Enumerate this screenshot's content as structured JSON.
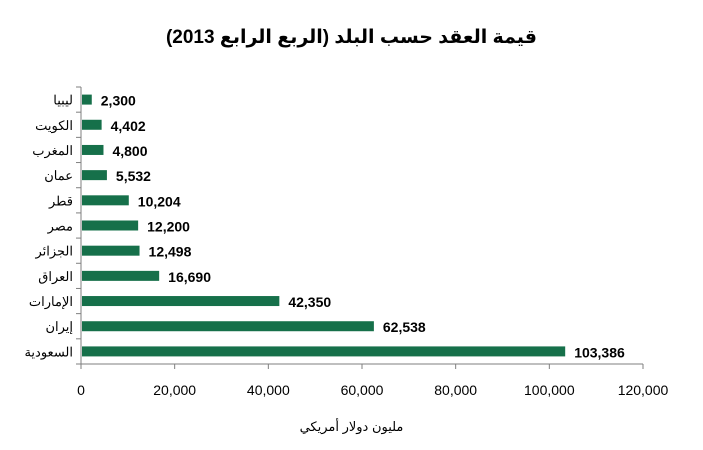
{
  "chart_data": {
    "type": "bar",
    "orientation": "horizontal",
    "title": "قيمة العقد حسب البلد (الربع الرابع 2013)",
    "xlabel": "مليون دولار أمريكي",
    "ylabel": "",
    "categories": [
      "ليبيا",
      "الكويت",
      "المغرب",
      "عمان",
      "قطر",
      "مصر",
      "الجزائر",
      "العراق",
      "الإمارات",
      "إيران",
      "السعودية"
    ],
    "values": [
      2300,
      4402,
      4800,
      5532,
      10204,
      12200,
      12498,
      16690,
      42350,
      62538,
      103386
    ],
    "value_labels": [
      "2,300",
      "4,402",
      "4,800",
      "5,532",
      "10,204",
      "12,200",
      "12,498",
      "16,690",
      "42,350",
      "62,538",
      "103,386"
    ],
    "xlim": [
      0,
      120000
    ],
    "x_ticks": [
      0,
      20000,
      40000,
      60000,
      80000,
      100000,
      120000
    ],
    "x_tick_labels": [
      "0",
      "20,000",
      "40,000",
      "60,000",
      "80,000",
      "100,000",
      "120,000"
    ],
    "bar_color": "#16704a",
    "grid": false,
    "legend": "none"
  }
}
